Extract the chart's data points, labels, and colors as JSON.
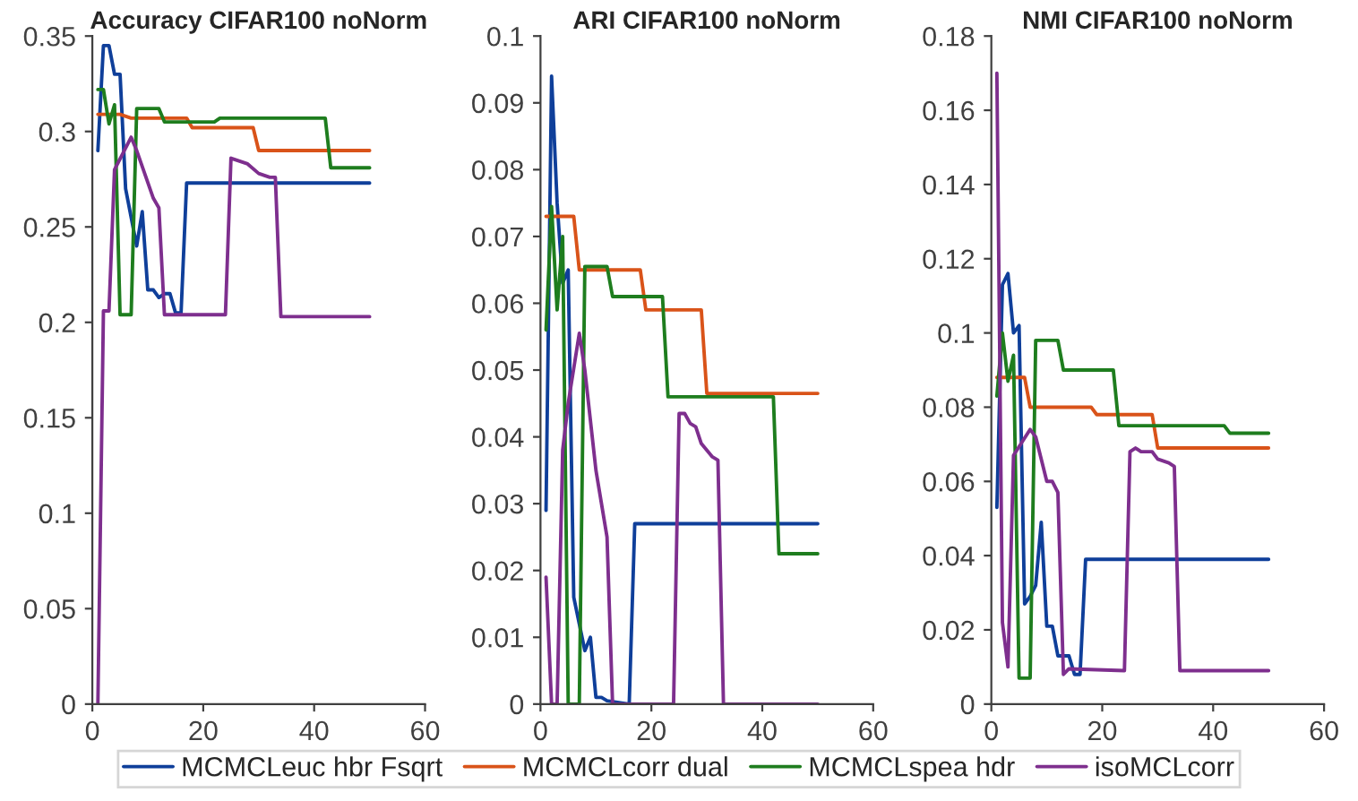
{
  "chart_data": [
    {
      "type": "line",
      "title": "Accuracy CIFAR100 noNorm",
      "xlim": [
        0,
        60
      ],
      "xticks": [
        0,
        20,
        40,
        60
      ],
      "ylim": [
        0,
        0.35
      ],
      "yticks": [
        0,
        0.05,
        0.1,
        0.15,
        0.2,
        0.25,
        0.3,
        0.35
      ],
      "grid": false,
      "legend": "bottom",
      "series": [
        {
          "name": "MCMCLeuc hbr Fsqrt",
          "color": "#0f3f9a",
          "x": [
            1,
            2,
            3,
            4,
            5,
            6,
            7,
            8,
            9,
            10,
            11,
            12,
            13,
            14,
            15,
            16,
            17,
            50
          ],
          "values": [
            0.29,
            0.345,
            0.345,
            0.33,
            0.33,
            0.27,
            0.255,
            0.24,
            0.258,
            0.217,
            0.217,
            0.213,
            0.215,
            0.215,
            0.205,
            0.205,
            0.273,
            0.273
          ]
        },
        {
          "name": "MCMCLcorr dual",
          "color": "#d95319",
          "x": [
            1,
            5,
            7,
            17,
            18,
            29,
            30,
            50
          ],
          "values": [
            0.309,
            0.309,
            0.307,
            0.307,
            0.302,
            0.302,
            0.29,
            0.29
          ]
        },
        {
          "name": "MCMCLspea hdr",
          "color": "#1e7d1e",
          "x": [
            1,
            2,
            3,
            4,
            5,
            7,
            8,
            12,
            13,
            22,
            23,
            42,
            43,
            50
          ],
          "values": [
            0.322,
            0.322,
            0.304,
            0.314,
            0.204,
            0.204,
            0.312,
            0.312,
            0.305,
            0.305,
            0.307,
            0.307,
            0.281,
            0.281
          ]
        },
        {
          "name": "isoMCLcorr",
          "color": "#7e2f8e",
          "x": [
            1,
            2,
            3,
            4,
            7,
            8,
            11,
            12,
            13,
            24,
            25,
            28,
            30,
            32,
            33,
            34,
            50
          ],
          "values": [
            0,
            0.206,
            0.206,
            0.28,
            0.297,
            0.29,
            0.265,
            0.26,
            0.204,
            0.204,
            0.286,
            0.283,
            0.278,
            0.276,
            0.276,
            0.203,
            0.203
          ]
        }
      ]
    },
    {
      "type": "line",
      "title": "ARI CIFAR100 noNorm",
      "xlim": [
        0,
        60
      ],
      "xticks": [
        0,
        20,
        40,
        60
      ],
      "ylim": [
        0,
        0.1
      ],
      "yticks": [
        0,
        0.01,
        0.02,
        0.03,
        0.04,
        0.05,
        0.06,
        0.07,
        0.08,
        0.09,
        0.1
      ],
      "grid": false,
      "series": [
        {
          "color": "#0f3f9a",
          "x": [
            1,
            2,
            3,
            4,
            5,
            6,
            7,
            8,
            9,
            10,
            11,
            12,
            16,
            17,
            50
          ],
          "values": [
            0.029,
            0.094,
            0.075,
            0.063,
            0.065,
            0.016,
            0.012,
            0.008,
            0.01,
            0.001,
            0.001,
            0.0005,
            0,
            0.027,
            0.027
          ]
        },
        {
          "color": "#d95319",
          "x": [
            1,
            6,
            7,
            18,
            19,
            29,
            30,
            50
          ],
          "values": [
            0.073,
            0.073,
            0.065,
            0.065,
            0.059,
            0.059,
            0.0465,
            0.0465
          ]
        },
        {
          "color": "#1e7d1e",
          "x": [
            1,
            2,
            3,
            4,
            5,
            7,
            8,
            12,
            13,
            22,
            23,
            42,
            43,
            50
          ],
          "values": [
            0.056,
            0.0745,
            0.059,
            0.07,
            0,
            0,
            0.0655,
            0.0655,
            0.061,
            0.061,
            0.046,
            0.046,
            0.0225,
            0.0225
          ]
        },
        {
          "color": "#7e2f8e",
          "x": [
            1,
            2,
            3,
            4,
            5,
            7,
            8,
            10,
            12,
            13,
            24,
            25,
            26,
            27,
            28,
            29,
            31,
            32,
            33,
            50
          ],
          "values": [
            0.019,
            0,
            0,
            0.038,
            0.045,
            0.0555,
            0.05,
            0.035,
            0.025,
            0,
            0,
            0.0435,
            0.0435,
            0.042,
            0.0415,
            0.039,
            0.037,
            0.0365,
            0,
            0
          ]
        }
      ]
    },
    {
      "type": "line",
      "title": "NMI CIFAR100 noNorm",
      "xlim": [
        0,
        60
      ],
      "xticks": [
        0,
        20,
        40,
        60
      ],
      "ylim": [
        0,
        0.18
      ],
      "yticks": [
        0,
        0.02,
        0.04,
        0.06,
        0.08,
        0.1,
        0.12,
        0.14,
        0.16,
        0.18
      ],
      "grid": false,
      "series": [
        {
          "color": "#0f3f9a",
          "x": [
            1,
            2,
            3,
            4,
            5,
            6,
            7,
            8,
            9,
            10,
            11,
            12,
            14,
            15,
            16,
            17,
            50
          ],
          "values": [
            0.053,
            0.113,
            0.116,
            0.1,
            0.102,
            0.027,
            0.029,
            0.032,
            0.049,
            0.021,
            0.021,
            0.013,
            0.013,
            0.008,
            0.008,
            0.039,
            0.039
          ]
        },
        {
          "color": "#d95319",
          "x": [
            1,
            6,
            7,
            18,
            19,
            29,
            30,
            50
          ],
          "values": [
            0.088,
            0.088,
            0.08,
            0.08,
            0.078,
            0.078,
            0.069,
            0.069
          ]
        },
        {
          "color": "#1e7d1e",
          "x": [
            1,
            2,
            3,
            4,
            5,
            7,
            8,
            12,
            13,
            22,
            23,
            42,
            43,
            50
          ],
          "values": [
            0.083,
            0.1,
            0.087,
            0.094,
            0.007,
            0.007,
            0.098,
            0.098,
            0.09,
            0.09,
            0.075,
            0.075,
            0.073,
            0.073
          ]
        },
        {
          "color": "#7e2f8e",
          "x": [
            1,
            2,
            3,
            4,
            7,
            8,
            10,
            11,
            12,
            13,
            14,
            24,
            25,
            26,
            27,
            29,
            30,
            32,
            33,
            34,
            50
          ],
          "values": [
            0.17,
            0.022,
            0.01,
            0.067,
            0.074,
            0.072,
            0.06,
            0.06,
            0.057,
            0.008,
            0.0095,
            0.009,
            0.068,
            0.069,
            0.068,
            0.068,
            0.066,
            0.065,
            0.064,
            0.009,
            0.009
          ]
        }
      ]
    }
  ]
}
